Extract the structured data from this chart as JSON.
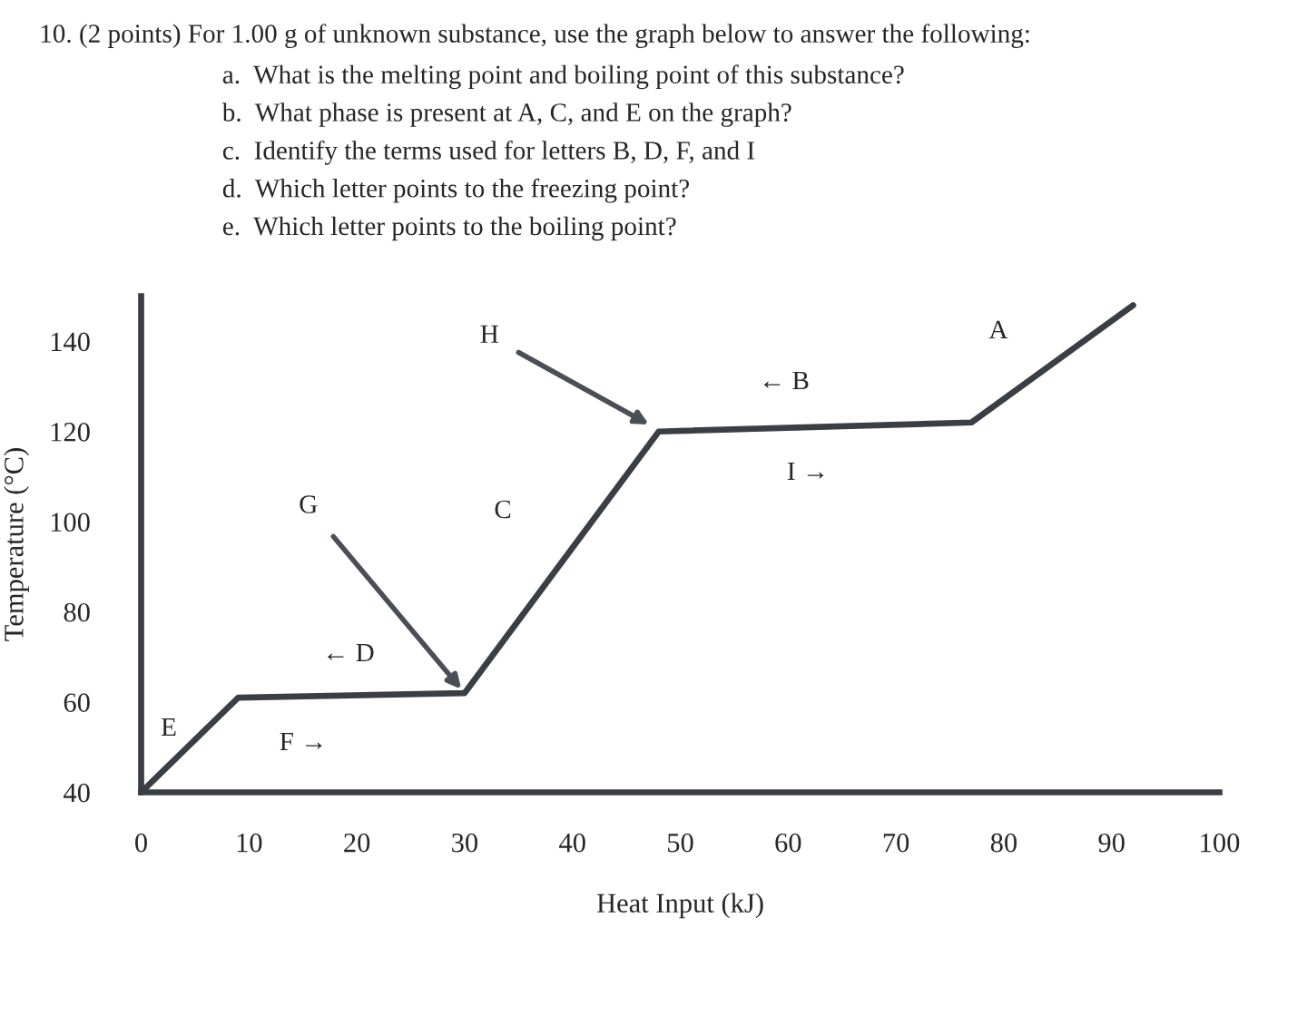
{
  "chart_data": {
    "type": "line",
    "title": "10. (2 points) For 1.00 g of unknown substance, use the graph below to answer the following:",
    "xlabel": "Heat Input (kJ)",
    "ylabel": "Temperature (°C)",
    "series": [
      {
        "color": "#3a3f45",
        "x": [
          0,
          9,
          30,
          48,
          77,
          92
        ],
        "values": [
          40,
          61,
          62,
          120,
          122,
          148
        ]
      }
    ],
    "xlim": [
      0,
      100
    ],
    "ylim": [
      40,
      150
    ],
    "xticks": [
      0,
      10,
      20,
      30,
      40,
      50,
      60,
      70,
      80,
      90,
      100
    ],
    "yticks": [
      40,
      60,
      80,
      100,
      120,
      140
    ],
    "annotations": [
      "a.  What is the melting point and boiling point of this substance?",
      "b.  What phase is present at A, C, and E on the graph?",
      "c.  Identify the terms used for letters B, D, F, and I",
      "d.  Which letter points to the freezing point?",
      "e.  Which letter points to the boiling point?",
      "A",
      "← B",
      "I →",
      "C",
      "← D",
      "E",
      "F →",
      {
        "text": "H",
        "x": 47.5,
        "y": 121
      },
      {
        "text": "G",
        "x": 30,
        "y": 62
      }
    ]
  }
}
